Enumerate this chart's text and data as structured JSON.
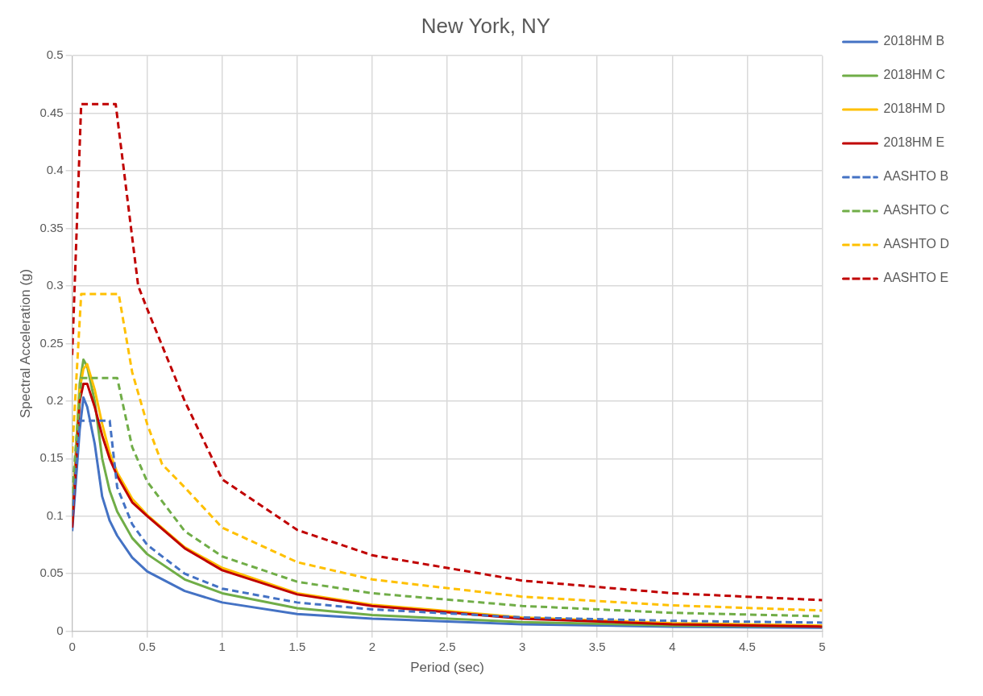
{
  "chart_data": {
    "type": "line",
    "title": "New York, NY",
    "xlabel": "Period (sec)",
    "ylabel": "Spectral Acceleration (g)",
    "xlim": [
      0,
      5
    ],
    "xticks": [
      0,
      0.5,
      1,
      1.5,
      2,
      2.5,
      3,
      3.5,
      4,
      4.5,
      5
    ],
    "ylim": [
      0,
      0.5
    ],
    "yticks": [
      0,
      0.05,
      0.1,
      0.15,
      0.2,
      0.25,
      0.3,
      0.35,
      0.4,
      0.45,
      0.5
    ],
    "grid": true,
    "legend": "right",
    "marker": "none",
    "series": [
      {
        "name": "2018HM B",
        "color": "#4472c4",
        "line_style": "solid",
        "x": [
          0,
          0.05,
          0.075,
          0.1,
          0.15,
          0.2,
          0.25,
          0.3,
          0.4,
          0.5,
          0.75,
          1,
          1.5,
          2,
          3,
          4,
          5
        ],
        "values": [
          0.087,
          0.175,
          0.203,
          0.195,
          0.163,
          0.117,
          0.096,
          0.083,
          0.064,
          0.052,
          0.035,
          0.025,
          0.015,
          0.011,
          0.006,
          0.004,
          0.003
        ]
      },
      {
        "name": "2018HM C",
        "color": "#70ad47",
        "line_style": "solid",
        "x": [
          0,
          0.05,
          0.075,
          0.1,
          0.15,
          0.2,
          0.25,
          0.3,
          0.4,
          0.5,
          0.75,
          1,
          1.5,
          2,
          3,
          4,
          5
        ],
        "values": [
          0.1,
          0.215,
          0.236,
          0.23,
          0.2,
          0.15,
          0.122,
          0.104,
          0.081,
          0.067,
          0.045,
          0.033,
          0.02,
          0.014,
          0.008,
          0.005,
          0.004
        ]
      },
      {
        "name": "2018HM D",
        "color": "#ffc000",
        "line_style": "solid",
        "x": [
          0,
          0.05,
          0.075,
          0.1,
          0.15,
          0.2,
          0.25,
          0.3,
          0.4,
          0.5,
          0.75,
          1,
          1.5,
          2,
          3,
          4,
          5
        ],
        "values": [
          0.095,
          0.21,
          0.228,
          0.232,
          0.21,
          0.18,
          0.155,
          0.138,
          0.115,
          0.101,
          0.073,
          0.055,
          0.033,
          0.023,
          0.012,
          0.007,
          0.005
        ]
      },
      {
        "name": "2018HM E",
        "color": "#c00000",
        "line_style": "solid",
        "x": [
          0,
          0.05,
          0.075,
          0.1,
          0.15,
          0.2,
          0.25,
          0.3,
          0.4,
          0.5,
          0.75,
          1,
          1.5,
          2,
          3,
          4,
          5
        ],
        "values": [
          0.09,
          0.2,
          0.215,
          0.215,
          0.195,
          0.17,
          0.15,
          0.135,
          0.112,
          0.1,
          0.072,
          0.053,
          0.032,
          0.022,
          0.011,
          0.006,
          0.004
        ]
      },
      {
        "name": "AASHTO B",
        "color": "#4472c4",
        "line_style": "dashed",
        "x": [
          0,
          0.05,
          0.25,
          0.3,
          0.4,
          0.5,
          0.75,
          1,
          1.5,
          2,
          3,
          4,
          5
        ],
        "values": [
          0.1,
          0.183,
          0.183,
          0.125,
          0.093,
          0.075,
          0.05,
          0.037,
          0.025,
          0.019,
          0.012,
          0.009,
          0.0075
        ]
      },
      {
        "name": "AASHTO C",
        "color": "#70ad47",
        "line_style": "dashed",
        "x": [
          0,
          0.06,
          0.3,
          0.4,
          0.5,
          0.75,
          1,
          1.5,
          2,
          3,
          4,
          5
        ],
        "values": [
          0.12,
          0.22,
          0.22,
          0.16,
          0.13,
          0.087,
          0.065,
          0.043,
          0.033,
          0.022,
          0.016,
          0.013
        ]
      },
      {
        "name": "AASHTO D",
        "color": "#ffc000",
        "line_style": "dashed",
        "x": [
          0,
          0.06,
          0.31,
          0.4,
          0.5,
          0.6,
          0.75,
          1,
          1.5,
          2,
          3,
          4,
          5
        ],
        "values": [
          0.155,
          0.293,
          0.293,
          0.225,
          0.18,
          0.145,
          0.125,
          0.09,
          0.06,
          0.045,
          0.03,
          0.0225,
          0.018
        ]
      },
      {
        "name": "AASHTO E",
        "color": "#c00000",
        "line_style": "dashed",
        "x": [
          0,
          0.06,
          0.29,
          0.44,
          0.5,
          0.75,
          1,
          1.5,
          2,
          3,
          4,
          5
        ],
        "values": [
          0.24,
          0.458,
          0.458,
          0.3,
          0.28,
          0.2,
          0.132,
          0.088,
          0.066,
          0.044,
          0.033,
          0.027
        ]
      }
    ]
  }
}
